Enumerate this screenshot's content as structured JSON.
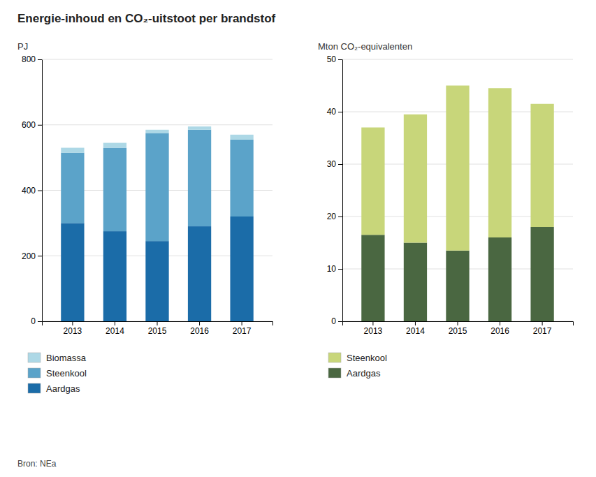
{
  "chart_data": [
    {
      "type": "bar",
      "stacked": true,
      "title": "Energie-inhoud en CO₂-uitstoot per brandstof",
      "categories": [
        "2013",
        "2014",
        "2015",
        "2016",
        "2017"
      ],
      "ylabel": "PJ",
      "ylim": [
        0,
        800
      ],
      "yticks": [
        0,
        200,
        400,
        600,
        800
      ],
      "grid": true,
      "series": [
        {
          "name": "Aardgas",
          "color": "#1B6CA8",
          "values": [
            300,
            275,
            245,
            290,
            320
          ]
        },
        {
          "name": "Steenkool",
          "color": "#5BA3C9",
          "values": [
            215,
            255,
            330,
            295,
            235
          ]
        },
        {
          "name": "Biomassa",
          "color": "#ADD8E6",
          "values": [
            15,
            15,
            10,
            10,
            15
          ]
        }
      ],
      "annotations": [
        "Bron: NEa"
      ]
    },
    {
      "type": "bar",
      "stacked": true,
      "categories": [
        "2013",
        "2014",
        "2015",
        "2016",
        "2017"
      ],
      "ylabel": "Mton CO₂-equivalenten",
      "ylim": [
        0,
        50
      ],
      "yticks": [
        0,
        10,
        20,
        30,
        40,
        50
      ],
      "grid": true,
      "series": [
        {
          "name": "Aardgas",
          "color": "#4A6741",
          "values": [
            16.5,
            15.0,
            13.5,
            16.0,
            18.0
          ]
        },
        {
          "name": "Steenkool",
          "color": "#C8D67A",
          "values": [
            20.5,
            24.5,
            31.5,
            28.5,
            23.5
          ]
        }
      ]
    }
  ]
}
